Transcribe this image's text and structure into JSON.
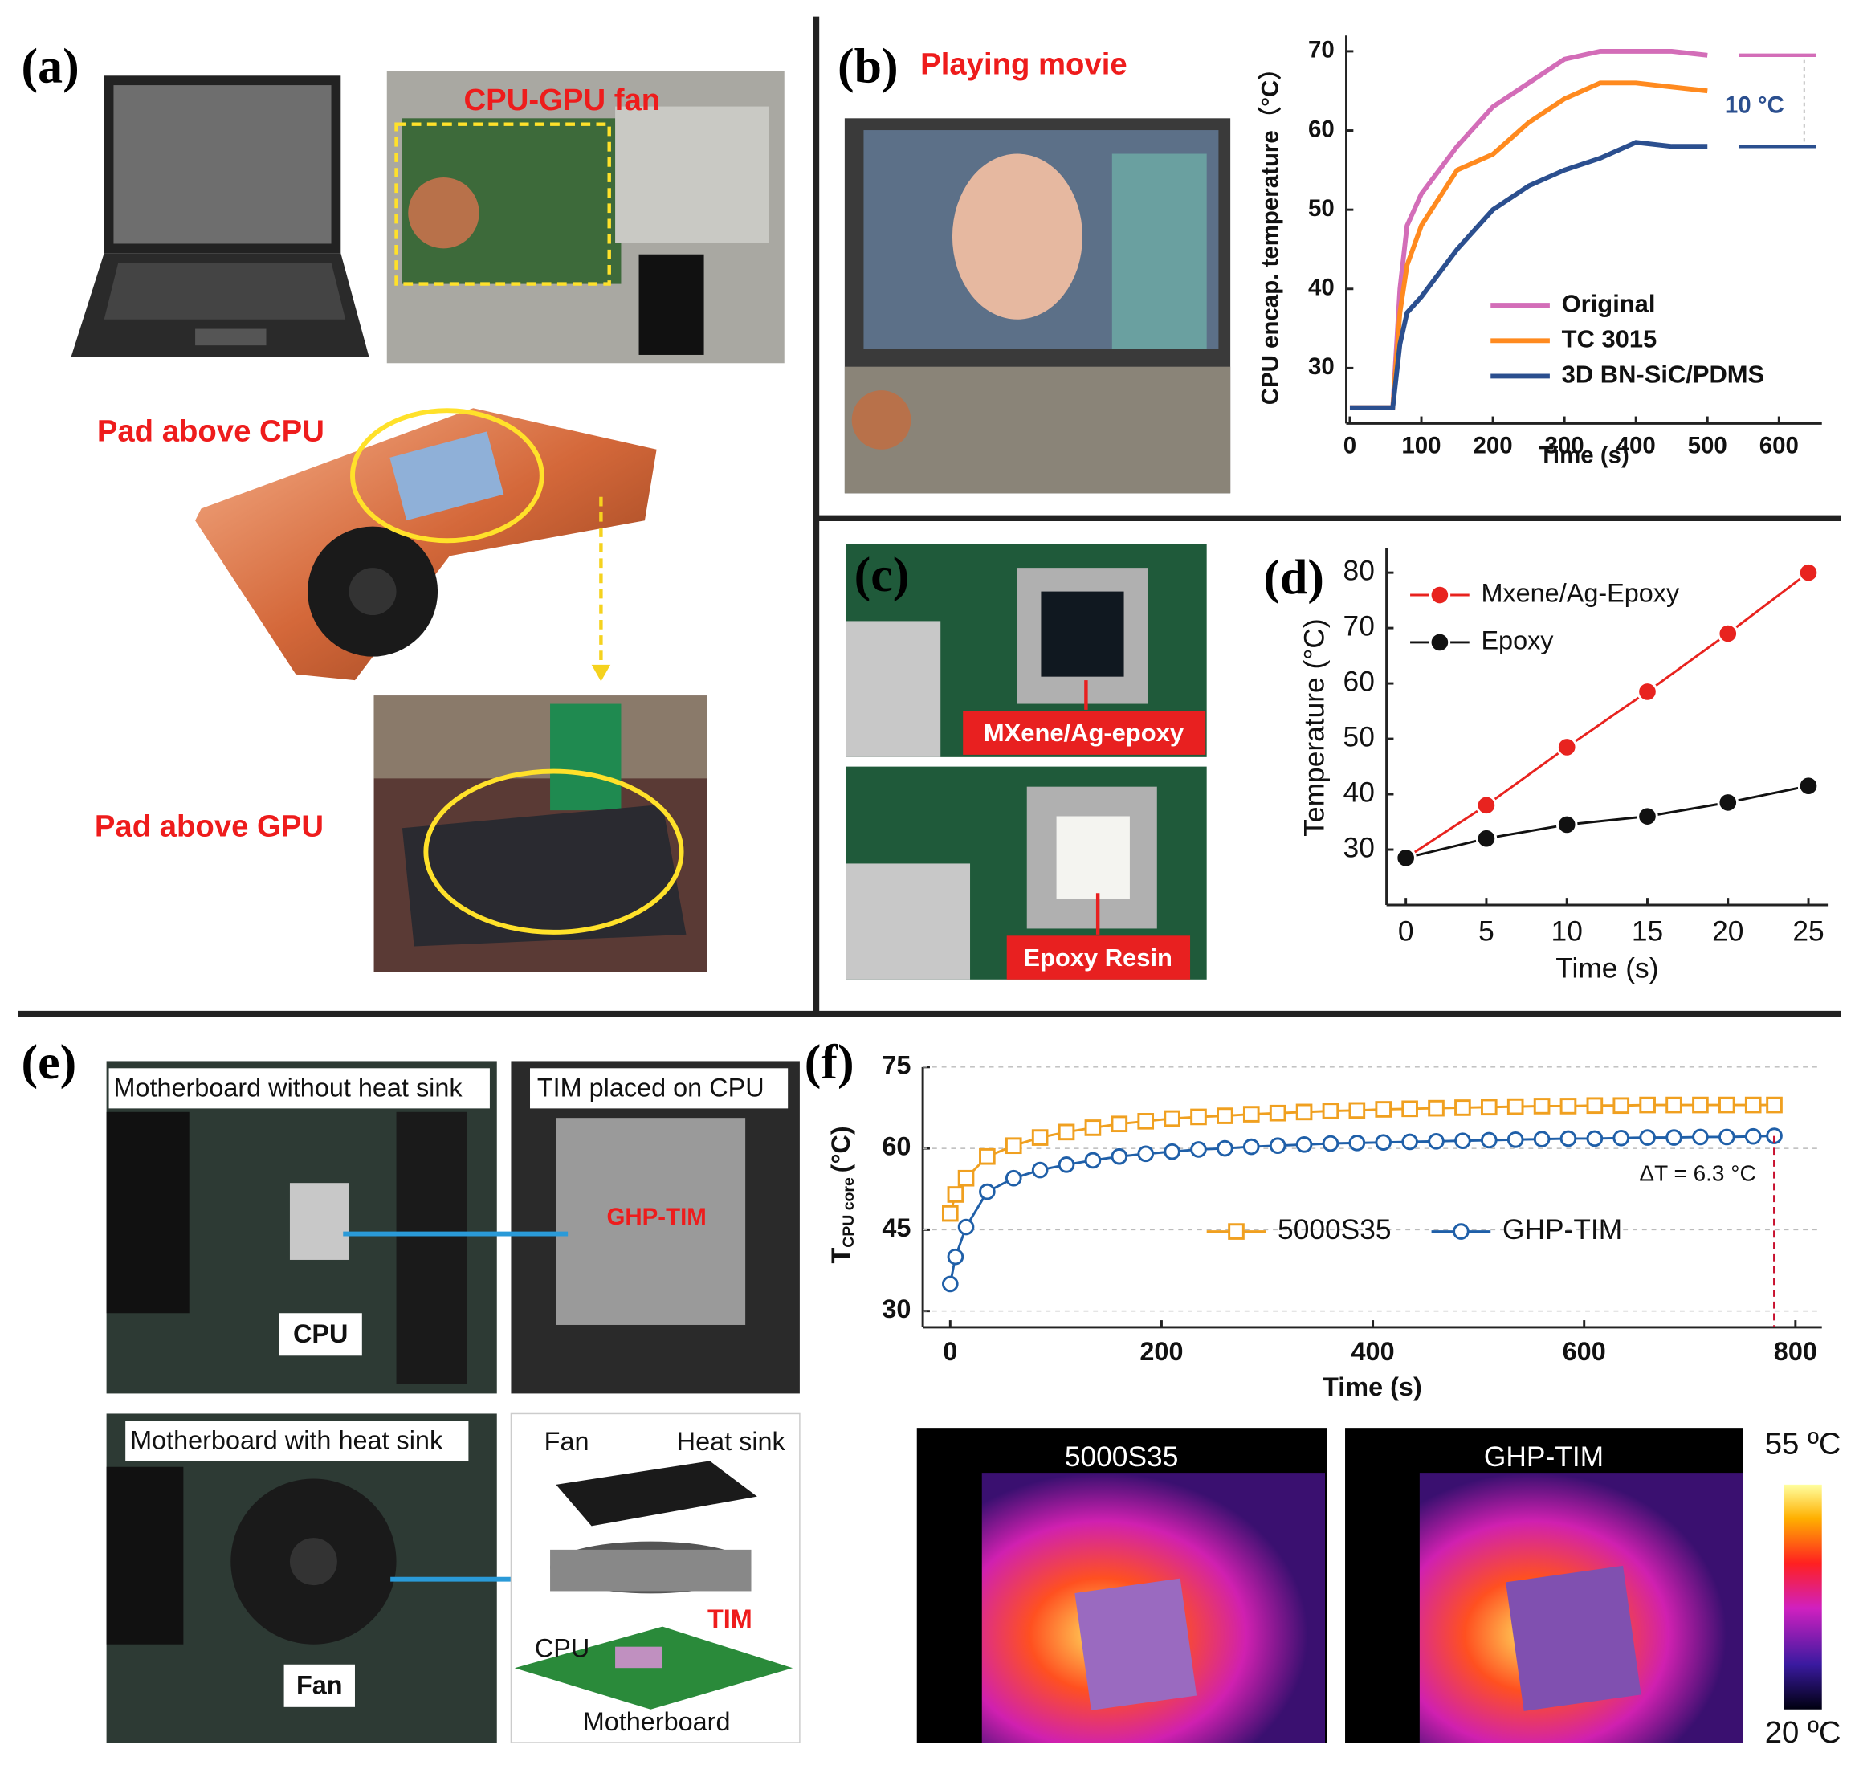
{
  "panels": {
    "a": {
      "label": "(a)",
      "texts": [
        "CPU-GPU fan",
        "Pad above CPU",
        "Pad above GPU"
      ]
    },
    "b": {
      "label": "(b)",
      "texts": [
        "Playing movie",
        "10 °C"
      ]
    },
    "c": {
      "label": "(c)",
      "texts": [
        "MXene/Ag-epoxy",
        "Epoxy Resin"
      ]
    },
    "d": {
      "label": "(d)"
    },
    "e": {
      "label": "(e)",
      "texts": [
        "Motherboard without heat sink",
        "TIM placed on CPU",
        "GHP-TIM",
        "CPU",
        "Motherboard with heat sink",
        "Fan",
        "Fan",
        "Heat sink",
        "TIM",
        "CPU",
        "Motherboard"
      ]
    },
    "f": {
      "label": "(f)",
      "texts": [
        "ΔT = 6.3 °C",
        "5000S35",
        "GHP-TIM",
        "55 ºC",
        "20 ºC"
      ]
    }
  },
  "chart_data": [
    {
      "type": "line",
      "xlabel": "Time (s)",
      "ylabel": "CPU encap. temperature（°C）",
      "x": [
        0,
        20,
        40,
        60,
        70,
        80,
        100,
        150,
        200,
        250,
        300,
        350,
        400,
        450,
        500
      ],
      "xlim": [
        -5,
        660
      ],
      "xticks": [
        0,
        100,
        200,
        300,
        400,
        500,
        600
      ],
      "ylim": [
        23,
        72
      ],
      "yticks": [
        30,
        40,
        50,
        60,
        70
      ],
      "grid": false,
      "legend": "lower right",
      "series": [
        {
          "name": "Original",
          "color": "#d36db8",
          "marker": "none",
          "values": [
            25,
            25,
            25,
            25,
            40,
            48,
            52,
            58,
            63,
            66,
            69,
            70,
            70,
            70,
            69.5
          ]
        },
        {
          "name": "TC 3015",
          "color": "#ff8a1f",
          "marker": "none",
          "values": [
            25,
            25,
            25,
            25,
            37,
            43,
            48,
            55,
            57,
            61,
            64,
            66,
            66,
            65.5,
            65
          ]
        },
        {
          "name": "3D BN-SiC/PDMS",
          "color": "#2b4f8f",
          "marker": "none",
          "values": [
            25,
            25,
            25,
            25,
            33,
            37,
            39,
            45,
            50,
            53,
            55,
            56.5,
            58.5,
            58,
            58
          ]
        }
      ]
    },
    {
      "type": "line",
      "xlabel": "Time (s)",
      "ylabel": "Temperature (°C)",
      "x": [
        0,
        5,
        10,
        15,
        20,
        25
      ],
      "xlim": [
        -1.2,
        26.2
      ],
      "xticks": [
        0,
        5,
        10,
        15,
        20,
        25
      ],
      "ylim": [
        20,
        84.5
      ],
      "yticks": [
        30,
        40,
        50,
        60,
        70,
        80
      ],
      "grid": false,
      "legend": "upper left",
      "series": [
        {
          "name": "Mxene/Ag-Epoxy",
          "color": "#e8231f",
          "marker": "circle",
          "values": [
            28.5,
            38,
            48.5,
            58.5,
            69,
            80
          ]
        },
        {
          "name": "Epoxy",
          "color": "#111111",
          "marker": "circle",
          "values": [
            28.5,
            32,
            34.5,
            36,
            38.5,
            41.5
          ]
        }
      ]
    },
    {
      "type": "line",
      "xlabel": "Time (s)",
      "ylabel": "T",
      "ylabel_sub": "CPU core",
      "ylabel_unit": "(°C)",
      "x": [
        0,
        5,
        15,
        35,
        60,
        85,
        110,
        135,
        160,
        185,
        210,
        235,
        260,
        285,
        310,
        335,
        360,
        385,
        410,
        435,
        460,
        485,
        510,
        535,
        560,
        585,
        610,
        635,
        660,
        685,
        710,
        735,
        760,
        780
      ],
      "xlim": [
        -26,
        825
      ],
      "xticks": [
        0,
        200,
        400,
        600,
        800
      ],
      "ylim": [
        27,
        75
      ],
      "yticks": [
        30,
        45,
        60,
        75
      ],
      "grid": true,
      "legend": "center",
      "series": [
        {
          "name": "5000S35",
          "color": "#f0a020",
          "marker": "square",
          "values": [
            48,
            51.5,
            54.5,
            58.5,
            60.5,
            62,
            63,
            63.8,
            64.5,
            65,
            65.5,
            65.8,
            66,
            66.3,
            66.5,
            66.7,
            66.9,
            67,
            67.2,
            67.3,
            67.4,
            67.5,
            67.6,
            67.7,
            67.8,
            67.8,
            67.9,
            67.9,
            68,
            68,
            68,
            68,
            68,
            68
          ]
        },
        {
          "name": "GHP-TIM",
          "color": "#1f5fa8",
          "marker": "circle",
          "values": [
            35,
            40,
            45.5,
            52,
            54.5,
            56,
            57,
            57.8,
            58.5,
            59,
            59.4,
            59.8,
            60,
            60.3,
            60.5,
            60.7,
            60.9,
            61,
            61.1,
            61.2,
            61.3,
            61.4,
            61.5,
            61.6,
            61.7,
            61.8,
            61.8,
            61.9,
            62,
            62,
            62.1,
            62.1,
            62.2,
            62.3
          ]
        }
      ]
    }
  ]
}
